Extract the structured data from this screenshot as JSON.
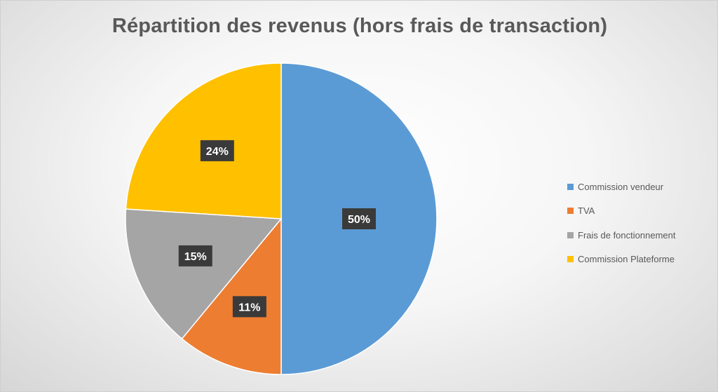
{
  "chart_data": {
    "type": "pie",
    "title": "Répartition des revenus (hors frais de transaction)",
    "categories": [
      "Commission vendeur",
      "TVA",
      "Frais de fonctionnement",
      "Commission Plateforme"
    ],
    "values": [
      50,
      11,
      15,
      24
    ],
    "data_labels": [
      "50%",
      "11%",
      "15%",
      "24%"
    ],
    "colors": [
      "#5B9BD5",
      "#ED7D31",
      "#A5A5A5",
      "#FFC000"
    ],
    "start_angle": "12 o'clock",
    "direction": "clockwise",
    "legend_position": "right",
    "data_label_style": "dark boxes"
  }
}
